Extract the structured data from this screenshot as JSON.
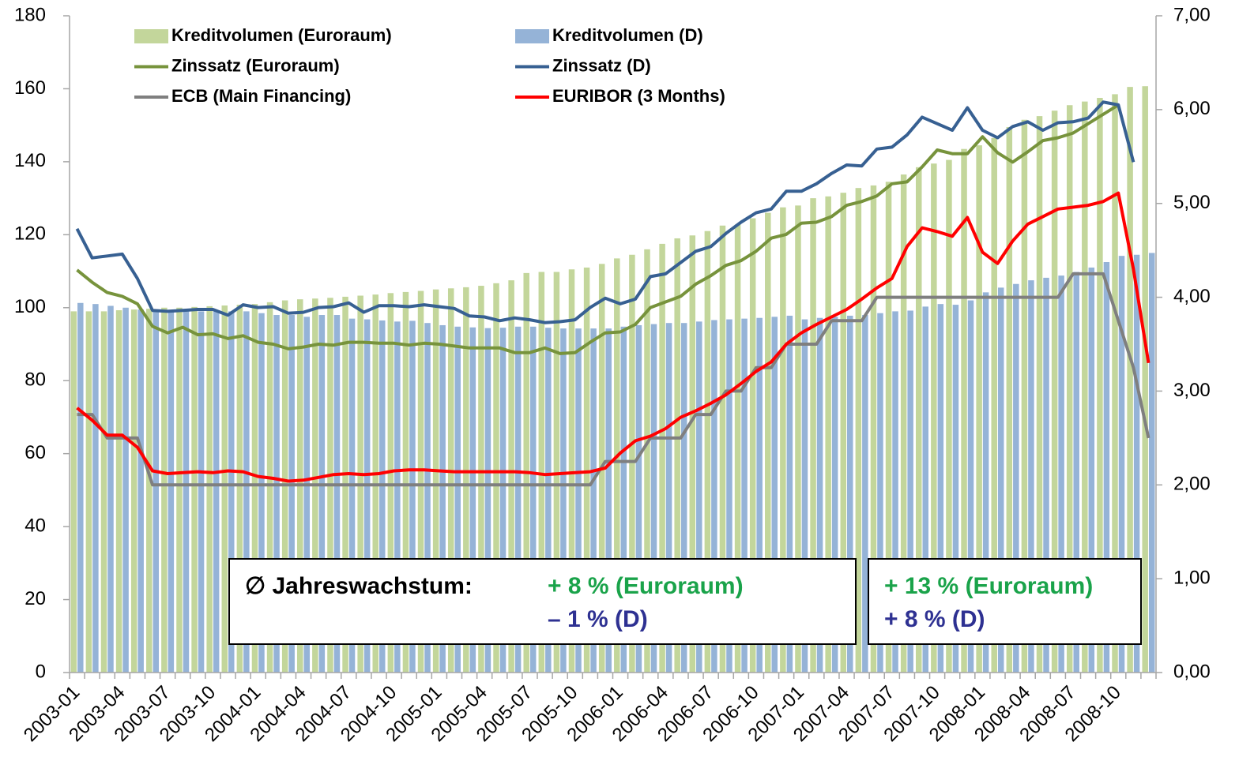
{
  "chart_data": {
    "type": "bar",
    "categories": [
      "2003-01",
      null,
      null,
      "2003-04",
      null,
      null,
      "2003-07",
      null,
      null,
      "2003-10",
      null,
      null,
      "2004-01",
      null,
      null,
      "2004-04",
      null,
      null,
      "2004-07",
      null,
      null,
      "2004-10",
      null,
      null,
      "2005-01",
      null,
      null,
      "2005-04",
      null,
      null,
      "2005-07",
      null,
      null,
      "2005-10",
      null,
      null,
      "2006-01",
      null,
      null,
      "2006-04",
      null,
      null,
      "2006-07",
      null,
      null,
      "2006-10",
      null,
      null,
      "2007-01",
      null,
      null,
      "2007-04",
      null,
      null,
      "2007-07",
      null,
      null,
      "2007-10",
      null,
      null,
      "2008-01",
      null,
      null,
      "2008-04",
      null,
      null,
      "2008-07",
      null,
      null,
      "2008-10",
      null,
      null
    ],
    "series": [
      {
        "name": "Kreditvolumen (Euroraum)",
        "type": "bar",
        "color": "#c3d69b",
        "values": [
          99,
          99,
          99,
          99.3,
          99.5,
          99.7,
          100,
          100,
          100.2,
          100.4,
          100.6,
          100.8,
          101,
          101.5,
          102,
          102.3,
          102.5,
          102.7,
          103,
          103.3,
          103.6,
          104,
          104.3,
          104.6,
          105,
          105.3,
          105.6,
          106,
          106.7,
          107.5,
          109.5,
          109.8,
          109.8,
          110.5,
          111,
          112,
          113.5,
          114.5,
          116,
          117.5,
          119,
          119.8,
          121,
          122.5,
          122.8,
          124.5,
          126,
          127.5,
          128,
          130,
          130.5,
          131.5,
          132.8,
          133.5,
          134.5,
          136.5,
          138.5,
          139.5,
          140.5,
          143.5,
          144.5,
          146.5,
          149.5,
          151.5,
          152.5,
          154,
          155.5,
          156.5,
          157.5,
          158.5,
          160.5,
          160.7
        ]
      },
      {
        "name": "Kreditvolumen (D)",
        "type": "bar",
        "color": "#95b3d7",
        "values": [
          101.3,
          101,
          100.5,
          100,
          99.5,
          99,
          99,
          99,
          99,
          99,
          99,
          99,
          98.5,
          98,
          98,
          97.5,
          98,
          98,
          97,
          96.8,
          96.5,
          96.2,
          96.4,
          95.8,
          95.2,
          94.8,
          94.6,
          94.4,
          94.5,
          94.8,
          94.8,
          94.5,
          94.3,
          94.3,
          94.3,
          94.3,
          94.8,
          95.2,
          95.5,
          95.8,
          95.8,
          96.2,
          96.6,
          96.8,
          97,
          97.2,
          97.5,
          97.8,
          96.8,
          97.2,
          97.5,
          97.8,
          98,
          98.5,
          99,
          99.2,
          100.3,
          101,
          100.8,
          102,
          104.2,
          105.5,
          106.5,
          107.5,
          108.2,
          108.8,
          109.8,
          111,
          112.5,
          114.2,
          114.5,
          115
        ]
      },
      {
        "name": "Zinssatz (Euroraum)",
        "type": "line",
        "axis": "y2",
        "color": "#77933c",
        "values": [
          4.29,
          4.16,
          4.05,
          4.01,
          3.93,
          3.69,
          3.62,
          3.68,
          3.6,
          3.61,
          3.56,
          3.59,
          3.52,
          3.5,
          3.45,
          3.47,
          3.5,
          3.49,
          3.52,
          3.52,
          3.51,
          3.51,
          3.49,
          3.51,
          3.5,
          3.48,
          3.46,
          3.46,
          3.46,
          3.41,
          3.41,
          3.46,
          3.4,
          3.41,
          3.52,
          3.62,
          3.63,
          3.71,
          3.89,
          3.95,
          4.01,
          4.14,
          4.23,
          4.34,
          4.39,
          4.49,
          4.63,
          4.67,
          4.79,
          4.8,
          4.86,
          4.98,
          5.02,
          5.08,
          5.21,
          5.23,
          5.39,
          5.57,
          5.53,
          5.53,
          5.71,
          5.54,
          5.44,
          5.55,
          5.67,
          5.7,
          5.75,
          5.85,
          5.95,
          6.05,
          null,
          null
        ]
      },
      {
        "name": "Zinssatz (D)",
        "type": "line",
        "axis": "y2",
        "color": "#376092",
        "values": [
          4.73,
          4.42,
          4.44,
          4.46,
          4.2,
          3.86,
          3.85,
          3.86,
          3.87,
          3.87,
          3.81,
          3.92,
          3.89,
          3.9,
          3.83,
          3.84,
          3.89,
          3.9,
          3.94,
          3.84,
          3.91,
          3.91,
          3.9,
          3.92,
          3.9,
          3.88,
          3.8,
          3.79,
          3.75,
          3.78,
          3.76,
          3.73,
          3.74,
          3.76,
          3.89,
          3.99,
          3.93,
          3.98,
          4.22,
          4.25,
          4.37,
          4.49,
          4.54,
          4.68,
          4.8,
          4.9,
          4.94,
          5.13,
          5.13,
          5.21,
          5.32,
          5.41,
          5.4,
          5.58,
          5.6,
          5.73,
          5.92,
          5.85,
          5.78,
          6.02,
          5.78,
          5.7,
          5.82,
          5.87,
          5.78,
          5.86,
          5.87,
          5.91,
          6.08,
          6.05,
          5.44,
          null
        ]
      },
      {
        "name": "ECB (Main Financing)",
        "type": "line",
        "axis": "y2",
        "color": "#7f7f7f",
        "values": [
          2.75,
          2.75,
          2.5,
          2.5,
          2.5,
          2,
          2,
          2,
          2,
          2,
          2,
          2,
          2,
          2,
          2,
          2,
          2,
          2,
          2,
          2,
          2,
          2,
          2,
          2,
          2,
          2,
          2,
          2,
          2,
          2,
          2,
          2,
          2,
          2,
          2,
          2.25,
          2.25,
          2.25,
          2.5,
          2.5,
          2.5,
          2.75,
          2.75,
          3,
          3,
          3.25,
          3.25,
          3.5,
          3.5,
          3.5,
          3.75,
          3.75,
          3.75,
          4,
          4,
          4,
          4,
          4,
          4,
          4,
          4,
          4,
          4,
          4,
          4,
          4,
          4.25,
          4.25,
          4.25,
          3.75,
          3.25,
          2.5
        ]
      },
      {
        "name": "EURIBOR (3 Months)",
        "type": "line",
        "axis": "y2",
        "color": "#ff0000",
        "values": [
          2.82,
          2.69,
          2.53,
          2.53,
          2.4,
          2.15,
          2.12,
          2.13,
          2.14,
          2.13,
          2.15,
          2.14,
          2.09,
          2.07,
          2.04,
          2.05,
          2.08,
          2.11,
          2.12,
          2.11,
          2.12,
          2.15,
          2.16,
          2.16,
          2.15,
          2.14,
          2.14,
          2.14,
          2.14,
          2.14,
          2.13,
          2.11,
          2.12,
          2.13,
          2.14,
          2.18,
          2.34,
          2.47,
          2.52,
          2.6,
          2.72,
          2.79,
          2.87,
          2.96,
          3.08,
          3.21,
          3.31,
          3.5,
          3.62,
          3.71,
          3.79,
          3.87,
          3.98,
          4.1,
          4.2,
          4.54,
          4.74,
          4.7,
          4.65,
          4.85,
          4.48,
          4.36,
          4.6,
          4.78,
          4.86,
          4.94,
          4.96,
          4.98,
          5.02,
          5.11,
          4.3,
          3.3
        ]
      }
    ],
    "ylim": [
      0,
      180
    ],
    "yticks": [
      0,
      20,
      40,
      60,
      80,
      100,
      120,
      140,
      160,
      180
    ],
    "y2lim": [
      0,
      7
    ],
    "y2ticks": [
      {
        "value": 0,
        "label": "0,00"
      },
      {
        "value": 1,
        "label": "1,00"
      },
      {
        "value": 2,
        "label": "2,00"
      },
      {
        "value": 3,
        "label": "3,00"
      },
      {
        "value": 4,
        "label": "4,00"
      },
      {
        "value": 5,
        "label": "5,00"
      },
      {
        "value": 6,
        "label": "6,00"
      },
      {
        "value": 7,
        "label": "7,00"
      }
    ],
    "legend": "top",
    "annotation_boxes": [
      {
        "heading": "∅ Jahreswachstum:",
        "lines": [
          {
            "text": "+ 8 % (Euroraum)",
            "color": "#1aa34a"
          },
          {
            "text": "– 1 % (D)",
            "color": "#2e3192"
          }
        ]
      },
      {
        "lines": [
          {
            "text": "+ 13 % (Euroraum)",
            "color": "#1aa34a"
          },
          {
            "text": "+ 8 % (D)",
            "color": "#2e3192"
          }
        ]
      }
    ]
  }
}
